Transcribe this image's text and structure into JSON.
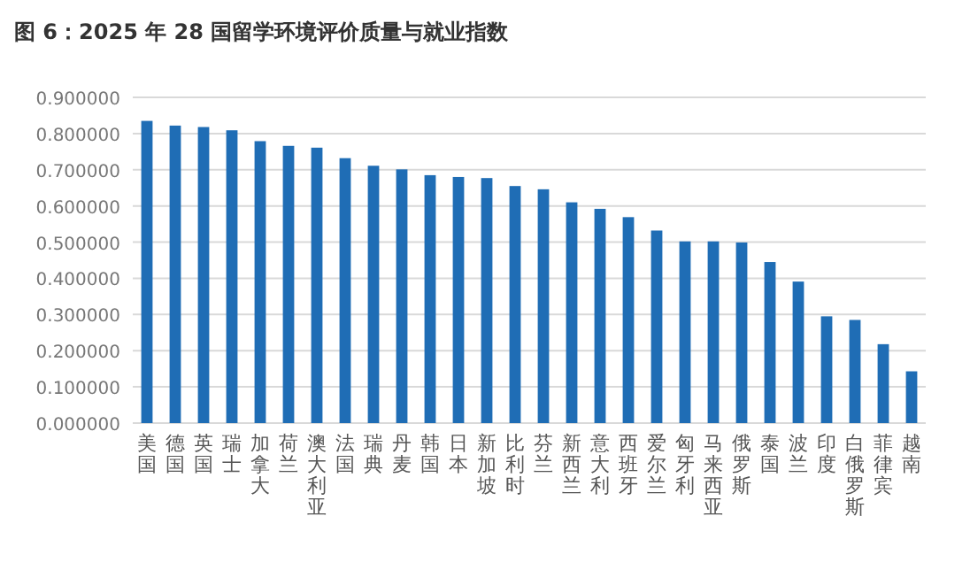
{
  "chart_data": {
    "type": "bar",
    "title": "图 6：2025 年 28 国留学环境评价质量与就业指数",
    "categories": [
      "美国",
      "德国",
      "英国",
      "瑞士",
      "加拿大",
      "荷兰",
      "澳大利亚",
      "法国",
      "瑞典",
      "丹麦",
      "韩国",
      "日本",
      "新加坡",
      "比利时",
      "芬兰",
      "新西兰",
      "意大利",
      "西班牙",
      "爱尔兰",
      "匈牙利",
      "马来西亚",
      "俄罗斯",
      "泰国",
      "波兰",
      "印度",
      "白俄罗斯",
      "菲律宾",
      "越南"
    ],
    "values": [
      0.835,
      0.822,
      0.818,
      0.809,
      0.779,
      0.766,
      0.761,
      0.732,
      0.711,
      0.701,
      0.685,
      0.68,
      0.677,
      0.655,
      0.646,
      0.61,
      0.592,
      0.569,
      0.532,
      0.502,
      0.502,
      0.499,
      0.445,
      0.391,
      0.295,
      0.285,
      0.218,
      0.143
    ],
    "color": "#1f6db5",
    "ylim": [
      0,
      0.9
    ],
    "yticks": [
      {
        "value": 0,
        "label": "0.000000"
      },
      {
        "value": 0.1,
        "label": "0.100000"
      },
      {
        "value": 0.2,
        "label": "0.200000"
      },
      {
        "value": 0.3,
        "label": "0.300000"
      },
      {
        "value": 0.4,
        "label": "0.400000"
      },
      {
        "value": 0.5,
        "label": "0.500000"
      },
      {
        "value": 0.6,
        "label": "0.600000"
      },
      {
        "value": 0.7,
        "label": "0.700000"
      },
      {
        "value": 0.8,
        "label": "0.800000"
      },
      {
        "value": 0.9,
        "label": "0.900000"
      }
    ],
    "grid": "y"
  }
}
